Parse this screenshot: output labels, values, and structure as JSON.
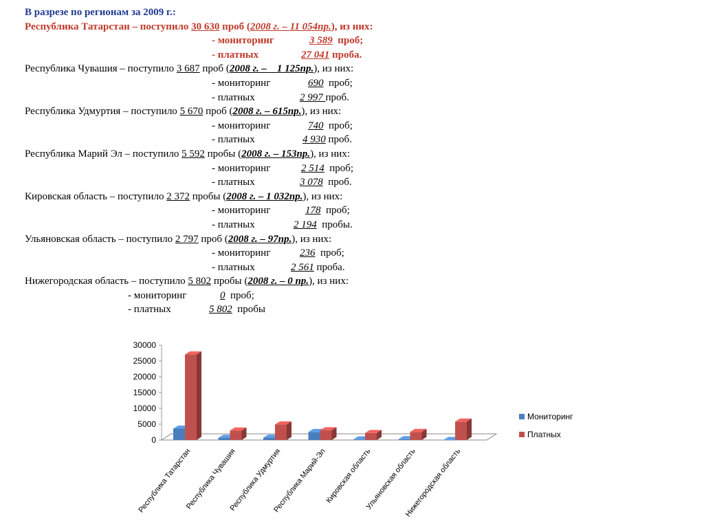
{
  "header": {
    "title": "В разрезе по регионам за 2009 г.:"
  },
  "regions": [
    {
      "name": "Республика Татарстан",
      "received": "30 630",
      "received_word": "проб",
      "year2008": "2008 г. – 11 054пр.",
      "monitoring": "3 589",
      "monitoring_word": "проб;",
      "paid": "27 041",
      "paid_word": "проба."
    },
    {
      "name": "Республика Чувашия",
      "received": "3 687",
      "received_word": "проб",
      "year2008": "2008 г. –    1 125пр.",
      "monitoring": "690",
      "monitoring_word": "проб;",
      "paid": "2 997 ",
      "paid_word": "проб."
    },
    {
      "name": "Республика Удмуртия",
      "received": "5 670",
      "received_word": "проб",
      "year2008": "2008 г. – 615пр.",
      "monitoring": "740",
      "monitoring_word": "проб;",
      "paid": "4 930",
      "paid_word": "проб."
    },
    {
      "name": "Республика Марий Эл",
      "received": "5 592",
      "received_word": "пробы",
      "year2008": "2008 г. – 153пр.",
      "monitoring": "2 514",
      "monitoring_word": "проб;",
      "paid": "3 078",
      "paid_word": "проб."
    },
    {
      "name": "Кировская область",
      "received": "2 372",
      "received_word": "пробы",
      "year2008": "2008 г. – 1 032пр.",
      "monitoring": "178",
      "monitoring_word": "проб;",
      "paid": "2 194",
      "paid_word": "пробы."
    },
    {
      "name": "Ульяновская область",
      "received": "2 797",
      "received_word": "проб",
      "year2008": "2008 г. – 97пр.",
      "monitoring": "236",
      "monitoring_word": "проб;",
      "paid": "2 561",
      "paid_word": "проба."
    },
    {
      "name": "Нижегородская область",
      "received": "5 802",
      "received_word": "пробы",
      "year2008": "2008 г. – 0 пр.",
      "monitoring": "0",
      "monitoring_word": "проб;",
      "paid": "5 802",
      "paid_word": "пробы"
    }
  ],
  "phrases": {
    "received_prefix": " – поступило ",
    "open_paren": " (",
    "of_them": "), из них:",
    "monitoring_label": "- мониторинг",
    "paid_label": "- платных"
  },
  "colors": {
    "heading": "#1f3a93",
    "highlight": "#c0392b",
    "series_monitoring": "#4a7ebb",
    "series_paid": "#c0504d"
  },
  "chart_data": {
    "type": "bar",
    "style": "3d-clustered-column",
    "categories": [
      "Республика Татарстан",
      "Республика Чувашия",
      "Республика Удмуртия",
      "Республика Марий-Эл",
      "Кировская область",
      "Ульяновская область",
      "Нижегородская область"
    ],
    "series": [
      {
        "name": "Мониторинг",
        "values": [
          3589,
          690,
          740,
          2514,
          178,
          236,
          0
        ]
      },
      {
        "name": "Платных",
        "values": [
          27041,
          2997,
          4930,
          3078,
          2194,
          2561,
          5802
        ]
      }
    ],
    "y_ticks": [
      "0",
      "5000",
      "10000",
      "15000",
      "20000",
      "25000",
      "30000"
    ],
    "ylim": [
      0,
      30000
    ],
    "legend_position": "right",
    "grid": false
  }
}
